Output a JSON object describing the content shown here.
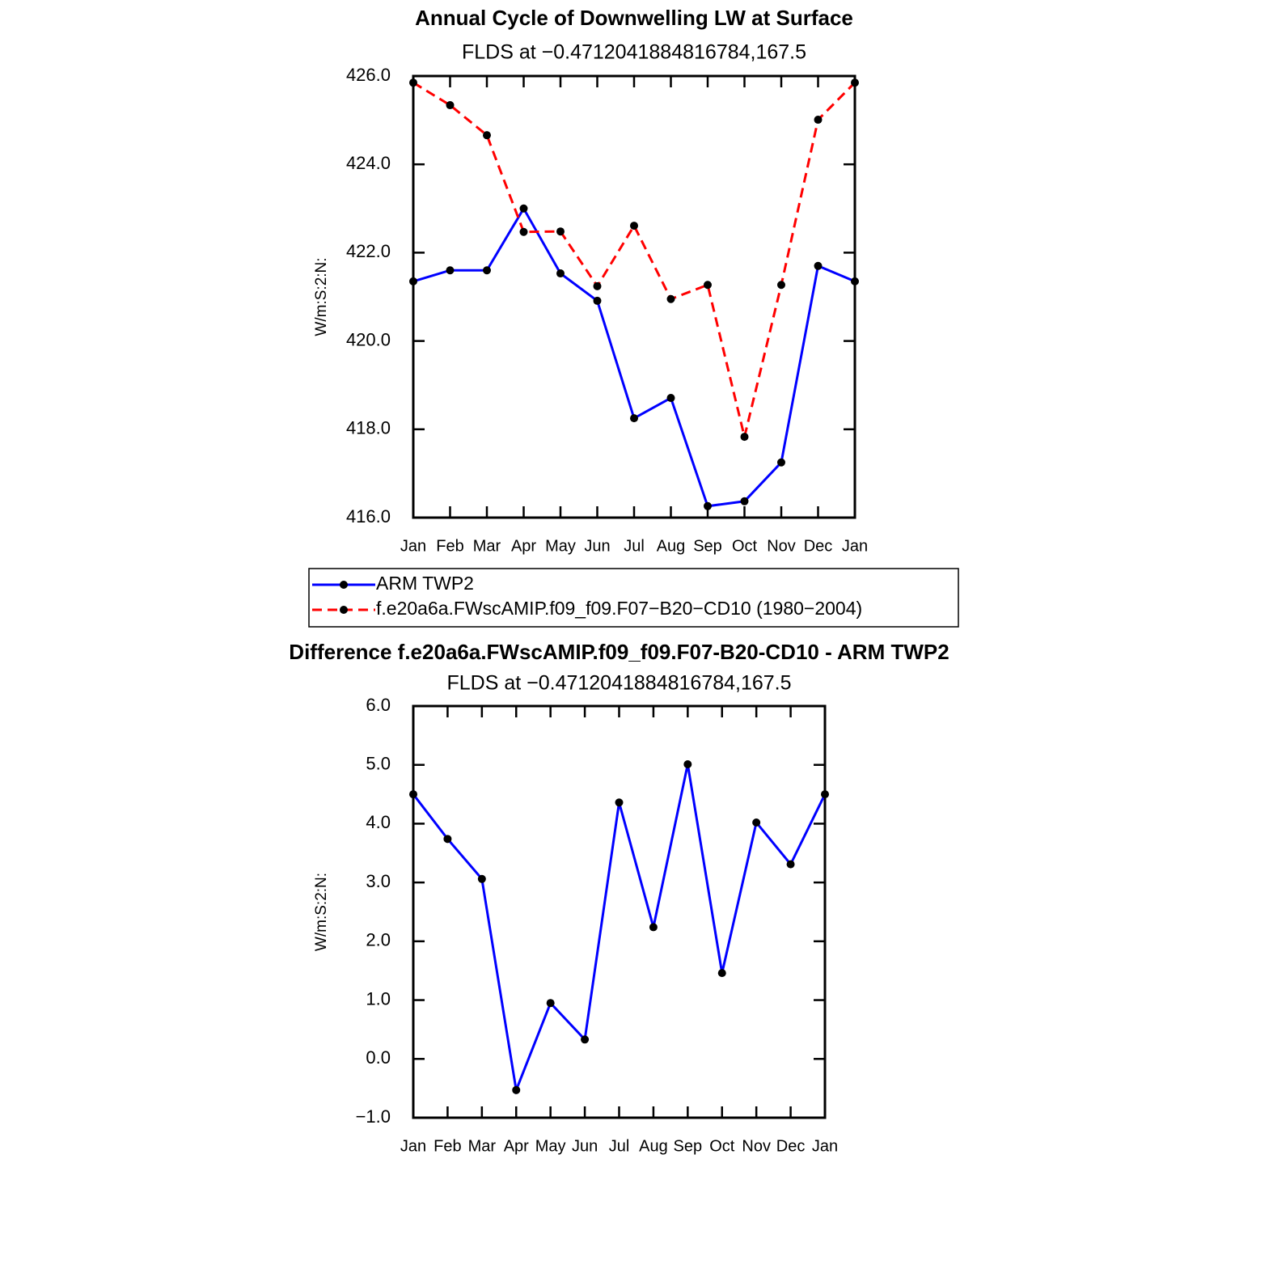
{
  "chart_data": [
    {
      "type": "line",
      "title": "Annual Cycle of Downwelling LW at Surface",
      "subtitle": "FLDS at −0.4712041884816784,167.5",
      "y_label": "W/m:S:2:N:",
      "categories": [
        "Jan",
        "Feb",
        "Mar",
        "Apr",
        "May",
        "Jun",
        "Jul",
        "Aug",
        "Sep",
        "Oct",
        "Nov",
        "Dec",
        "Jan"
      ],
      "series": [
        {
          "name": "ARM TWP2",
          "color": "#0000ff",
          "dash": false,
          "values": [
            421.35,
            421.6,
            421.6,
            423.0,
            421.53,
            420.91,
            418.25,
            418.71,
            416.26,
            416.37,
            417.25,
            421.7,
            421.35
          ]
        },
        {
          "name": "f.e20a6a.FWscAMIP.f09_f09.F07−B20−CD10 (1980−2004)",
          "color": "#ff0000",
          "dash": true,
          "values": [
            425.85,
            425.34,
            424.66,
            422.47,
            422.48,
            421.24,
            422.61,
            420.95,
            421.27,
            417.83,
            421.27,
            425.01,
            425.85
          ]
        }
      ],
      "ylim": [
        416,
        426
      ],
      "yticks": [
        {
          "value": 416,
          "label": "416.0"
        },
        {
          "value": 418,
          "label": "418.0"
        },
        {
          "value": 420,
          "label": "420.0"
        },
        {
          "value": 422,
          "label": "422.0"
        },
        {
          "value": 424,
          "label": "424.0"
        },
        {
          "value": 426,
          "label": "426.0"
        }
      ],
      "legend": "bottom"
    },
    {
      "type": "line",
      "title": "Difference f.e20a6a.FWscAMIP.f09_f09.F07-B20-CD10 - ARM TWP2",
      "subtitle": "FLDS at −0.4712041884816784,167.5",
      "y_label": "W/m:S:2:N:",
      "categories": [
        "Jan",
        "Feb",
        "Mar",
        "Apr",
        "May",
        "Jun",
        "Jul",
        "Aug",
        "Sep",
        "Oct",
        "Nov",
        "Dec",
        "Jan"
      ],
      "series": [
        {
          "color": "#0000ff",
          "dash": false,
          "values": [
            4.5,
            3.74,
            3.06,
            -0.53,
            0.95,
            0.33,
            4.36,
            2.24,
            5.01,
            1.46,
            4.02,
            3.31,
            4.5
          ]
        }
      ],
      "ylim": [
        -1,
        6
      ],
      "yticks": [
        {
          "value": -1,
          "label": "−1.0"
        },
        {
          "value": 0,
          "label": "0.0"
        },
        {
          "value": 1,
          "label": "1.0"
        },
        {
          "value": 2,
          "label": "2.0"
        },
        {
          "value": 3,
          "label": "3.0"
        },
        {
          "value": 4,
          "label": "4.0"
        },
        {
          "value": 5,
          "label": "5.0"
        },
        {
          "value": 6,
          "label": "6.0"
        }
      ]
    }
  ]
}
